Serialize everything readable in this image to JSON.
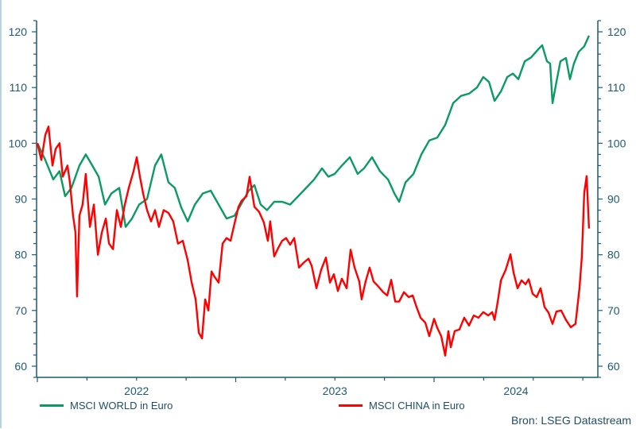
{
  "chart_data": {
    "type": "line",
    "xlabel": "",
    "ylabel": "",
    "x_unit": "year",
    "xlim": [
      2022.0,
      2024.83
    ],
    "ylim": [
      58,
      122
    ],
    "x_tick_labels": [
      "2022",
      "2023",
      "2024"
    ],
    "y_ticks": [
      60,
      70,
      80,
      90,
      100,
      110,
      120
    ],
    "y_tick_labels": [
      "60",
      "70",
      "80",
      "90",
      "100",
      "110",
      "120"
    ],
    "right_axis_mirrors_left": true,
    "grid": false,
    "legend_position": "bottom",
    "source": "Bron: LSEG Datastream",
    "series": [
      {
        "name": "MSCI WORLD in Euro",
        "color": "#0a9b63",
        "points": [
          [
            2022.0,
            100
          ],
          [
            2022.04,
            97
          ],
          [
            2022.08,
            93.5
          ],
          [
            2022.112,
            95
          ],
          [
            2022.14,
            90.5
          ],
          [
            2022.172,
            92
          ],
          [
            2022.212,
            96
          ],
          [
            2022.244,
            98
          ],
          [
            2022.277,
            96
          ],
          [
            2022.309,
            94
          ],
          [
            2022.341,
            89
          ],
          [
            2022.373,
            91
          ],
          [
            2022.413,
            92
          ],
          [
            2022.445,
            85
          ],
          [
            2022.477,
            86.5
          ],
          [
            2022.513,
            89
          ],
          [
            2022.553,
            90
          ],
          [
            2022.593,
            96
          ],
          [
            2022.625,
            98
          ],
          [
            2022.661,
            93
          ],
          [
            2022.693,
            92
          ],
          [
            2022.725,
            88.5
          ],
          [
            2022.758,
            86
          ],
          [
            2022.794,
            89
          ],
          [
            2022.834,
            91
          ],
          [
            2022.874,
            91.5
          ],
          [
            2022.914,
            89
          ],
          [
            2022.954,
            86.5
          ],
          [
            2022.994,
            87
          ],
          [
            2023.034,
            89.5
          ],
          [
            2023.066,
            91.5
          ],
          [
            2023.094,
            92.5
          ],
          [
            2023.126,
            89
          ],
          [
            2023.158,
            88
          ],
          [
            2023.194,
            89.5
          ],
          [
            2023.234,
            89.5
          ],
          [
            2023.274,
            89
          ],
          [
            2023.315,
            90.5
          ],
          [
            2023.355,
            92
          ],
          [
            2023.395,
            93.5
          ],
          [
            2023.435,
            95.5
          ],
          [
            2023.467,
            94
          ],
          [
            2023.499,
            94.5
          ],
          [
            2023.535,
            96
          ],
          [
            2023.575,
            97.5
          ],
          [
            2023.615,
            94.5
          ],
          [
            2023.647,
            95.5
          ],
          [
            2023.687,
            97.5
          ],
          [
            2023.727,
            95
          ],
          [
            2023.768,
            93.5
          ],
          [
            2023.8,
            91
          ],
          [
            2023.824,
            89.5
          ],
          [
            2023.856,
            93
          ],
          [
            2023.896,
            94.5
          ],
          [
            2023.936,
            98
          ],
          [
            2023.976,
            100.5
          ],
          [
            2024.016,
            101
          ],
          [
            2024.056,
            103.3
          ],
          [
            2024.096,
            107.2
          ],
          [
            2024.136,
            108.5
          ],
          [
            2024.176,
            108.9
          ],
          [
            2024.216,
            110
          ],
          [
            2024.248,
            111.9
          ],
          [
            2024.277,
            111
          ],
          [
            2024.305,
            107.6
          ],
          [
            2024.337,
            109.3
          ],
          [
            2024.369,
            111.9
          ],
          [
            2024.397,
            112.5
          ],
          [
            2024.425,
            111.5
          ],
          [
            2024.457,
            114.7
          ],
          [
            2024.489,
            115.4
          ],
          [
            2024.521,
            116.7
          ],
          [
            2024.545,
            117.6
          ],
          [
            2024.569,
            114.7
          ],
          [
            2024.585,
            114.3
          ],
          [
            2024.597,
            107.2
          ],
          [
            2024.617,
            111
          ],
          [
            2024.637,
            114.7
          ],
          [
            2024.665,
            115.3
          ],
          [
            2024.685,
            111.5
          ],
          [
            2024.705,
            114.3
          ],
          [
            2024.729,
            116.4
          ],
          [
            2024.757,
            117.4
          ],
          [
            2024.781,
            119.3
          ]
        ]
      },
      {
        "name": "MSCI CHINA in Euro",
        "color": "#ff0000",
        "points": [
          [
            2022.0,
            100
          ],
          [
            2022.02,
            97
          ],
          [
            2022.04,
            101.5
          ],
          [
            2022.056,
            103
          ],
          [
            2022.076,
            96
          ],
          [
            2022.092,
            99
          ],
          [
            2022.112,
            100
          ],
          [
            2022.128,
            94
          ],
          [
            2022.152,
            96
          ],
          [
            2022.164,
            93
          ],
          [
            2022.18,
            87
          ],
          [
            2022.192,
            84
          ],
          [
            2022.2,
            72.5
          ],
          [
            2022.212,
            87
          ],
          [
            2022.228,
            89
          ],
          [
            2022.244,
            94.5
          ],
          [
            2022.265,
            85
          ],
          [
            2022.285,
            89
          ],
          [
            2022.305,
            80
          ],
          [
            2022.325,
            84
          ],
          [
            2022.345,
            86.5
          ],
          [
            2022.361,
            82
          ],
          [
            2022.381,
            81
          ],
          [
            2022.401,
            88
          ],
          [
            2022.421,
            85
          ],
          [
            2022.441,
            89
          ],
          [
            2022.461,
            92
          ],
          [
            2022.485,
            95
          ],
          [
            2022.501,
            97.5
          ],
          [
            2022.517,
            94
          ],
          [
            2022.533,
            91
          ],
          [
            2022.553,
            88
          ],
          [
            2022.573,
            86
          ],
          [
            2022.593,
            88
          ],
          [
            2022.613,
            85
          ],
          [
            2022.637,
            88
          ],
          [
            2022.661,
            87.5
          ],
          [
            2022.685,
            86
          ],
          [
            2022.709,
            82
          ],
          [
            2022.733,
            82.5
          ],
          [
            2022.758,
            79
          ],
          [
            2022.778,
            75
          ],
          [
            2022.798,
            72
          ],
          [
            2022.814,
            66
          ],
          [
            2022.83,
            65
          ],
          [
            2022.846,
            72
          ],
          [
            2022.862,
            70
          ],
          [
            2022.878,
            77
          ],
          [
            2022.894,
            76
          ],
          [
            2022.914,
            75
          ],
          [
            2022.934,
            82
          ],
          [
            2022.954,
            83
          ],
          [
            2022.974,
            82.5
          ],
          [
            2022.99,
            85
          ],
          [
            2023.014,
            88.6
          ],
          [
            2023.03,
            89.7
          ],
          [
            2023.054,
            90.5
          ],
          [
            2023.07,
            94
          ],
          [
            2023.094,
            88.6
          ],
          [
            2023.118,
            87.7
          ],
          [
            2023.142,
            85.8
          ],
          [
            2023.162,
            82.5
          ],
          [
            2023.174,
            86
          ],
          [
            2023.194,
            79.7
          ],
          [
            2023.214,
            81.2
          ],
          [
            2023.234,
            82.5
          ],
          [
            2023.254,
            83
          ],
          [
            2023.274,
            81.8
          ],
          [
            2023.295,
            83
          ],
          [
            2023.319,
            77.7
          ],
          [
            2023.343,
            78.6
          ],
          [
            2023.367,
            79.3
          ],
          [
            2023.383,
            78
          ],
          [
            2023.407,
            74
          ],
          [
            2023.431,
            77.3
          ],
          [
            2023.455,
            79.5
          ],
          [
            2023.475,
            75
          ],
          [
            2023.495,
            76.5
          ],
          [
            2023.515,
            73.5
          ],
          [
            2023.535,
            75.7
          ],
          [
            2023.559,
            74
          ],
          [
            2023.579,
            80.9
          ],
          [
            2023.599,
            77.7
          ],
          [
            2023.623,
            75.2
          ],
          [
            2023.635,
            72
          ],
          [
            2023.655,
            75.2
          ],
          [
            2023.675,
            77.7
          ],
          [
            2023.695,
            75.2
          ],
          [
            2023.719,
            74.3
          ],
          [
            2023.743,
            73.3
          ],
          [
            2023.764,
            72.7
          ],
          [
            2023.784,
            75.5
          ],
          [
            2023.804,
            71.6
          ],
          [
            2023.824,
            71.6
          ],
          [
            2023.848,
            73.3
          ],
          [
            2023.872,
            72.4
          ],
          [
            2023.892,
            72.7
          ],
          [
            2023.912,
            70.6
          ],
          [
            2023.932,
            68.7
          ],
          [
            2023.956,
            67.8
          ],
          [
            2023.976,
            65.4
          ],
          [
            2024.0,
            68.5
          ],
          [
            2024.016,
            66.9
          ],
          [
            2024.036,
            65.4
          ],
          [
            2024.056,
            61.9
          ],
          [
            2024.072,
            66.3
          ],
          [
            2024.084,
            63.4
          ],
          [
            2024.104,
            66.3
          ],
          [
            2024.128,
            66.6
          ],
          [
            2024.152,
            68.7
          ],
          [
            2024.176,
            67.3
          ],
          [
            2024.2,
            69.1
          ],
          [
            2024.224,
            68.7
          ],
          [
            2024.248,
            69.7
          ],
          [
            2024.273,
            69.1
          ],
          [
            2024.293,
            69.7
          ],
          [
            2024.305,
            68.3
          ],
          [
            2024.321,
            71.6
          ],
          [
            2024.337,
            75.4
          ],
          [
            2024.361,
            77.3
          ],
          [
            2024.385,
            80.1
          ],
          [
            2024.401,
            76.8
          ],
          [
            2024.421,
            74
          ],
          [
            2024.441,
            75.4
          ],
          [
            2024.461,
            74.7
          ],
          [
            2024.477,
            75.6
          ],
          [
            2024.497,
            73
          ],
          [
            2024.517,
            72.4
          ],
          [
            2024.537,
            74
          ],
          [
            2024.557,
            70.6
          ],
          [
            2024.577,
            69.6
          ],
          [
            2024.597,
            67.6
          ],
          [
            2024.617,
            69.8
          ],
          [
            2024.641,
            70
          ],
          [
            2024.665,
            68.3
          ],
          [
            2024.689,
            67
          ],
          [
            2024.713,
            67.6
          ],
          [
            2024.733,
            74
          ],
          [
            2024.745,
            79.7
          ],
          [
            2024.757,
            91.1
          ],
          [
            2024.769,
            94.1
          ],
          [
            2024.781,
            84.7
          ]
        ]
      }
    ]
  },
  "legend": {
    "world": "MSCI WORLD in Euro",
    "china": "MSCI CHINA in Euro"
  },
  "source": "Bron: LSEG Datastream"
}
